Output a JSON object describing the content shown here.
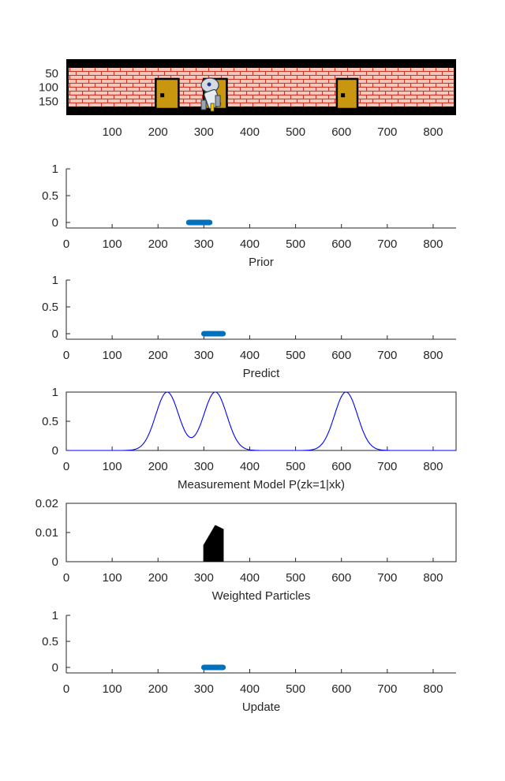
{
  "figure": {
    "xticks": [
      "0",
      "100",
      "200",
      "300",
      "400",
      "500",
      "600",
      "700",
      "800"
    ],
    "xlim": [
      0,
      850
    ],
    "colors": {
      "particles": "#0072bd",
      "measurement_line": "#0000ff",
      "weights_fill": "#000000",
      "axis": "#262626",
      "brick": "#f4c7bc",
      "mortar_line": "#c8321e",
      "door": "#c8960f",
      "wall_border": "#000000"
    }
  },
  "chart_data": [
    {
      "id": "scene",
      "type": "other",
      "description_visible": "corridor wall with three doors and a robot",
      "yticks": [
        "50",
        "100",
        "150"
      ],
      "xlim": [
        0,
        850
      ],
      "ylim": [
        0,
        200
      ],
      "doors_x_ranges": [
        [
          195,
          245
        ],
        [
          300,
          350
        ],
        [
          590,
          635
        ]
      ],
      "robot_x": 315,
      "icons": [
        "brick-wall-icon",
        "door-icon",
        "robot-icon"
      ]
    },
    {
      "id": "prior",
      "type": "scatter",
      "xlabel": "Prior",
      "yticks": [
        "0",
        "0.5",
        "1"
      ],
      "ylim": [
        0,
        1
      ],
      "x_range": [
        267,
        313
      ],
      "y": 0
    },
    {
      "id": "predict",
      "type": "scatter",
      "xlabel": "Predict",
      "yticks": [
        "0",
        "0.5",
        "1"
      ],
      "ylim": [
        0,
        1
      ],
      "x_range": [
        300,
        342
      ],
      "y": 0
    },
    {
      "id": "measurement",
      "type": "line",
      "xlabel": "Measurement Model P(zk=1|xk)",
      "yticks": [
        "0",
        "0.5",
        "1"
      ],
      "ylim": [
        0,
        1
      ],
      "gaussian_means": [
        220,
        325,
        610
      ],
      "gaussian_sigma": 25
    },
    {
      "id": "weights",
      "type": "bar",
      "xlabel": "Weighted Particles",
      "yticks": [
        "0",
        "0.01",
        "0.02"
      ],
      "ylim": [
        0,
        0.02
      ],
      "x_range": [
        300,
        342
      ],
      "peak_x": 325,
      "peak_value": 0.0125,
      "start_value": 0.0058,
      "end_value": 0.0112
    },
    {
      "id": "update",
      "type": "scatter",
      "xlabel": "Update",
      "yticks": [
        "0",
        "0.5",
        "1"
      ],
      "ylim": [
        0,
        1
      ],
      "x_range": [
        300,
        342
      ],
      "y": 0
    }
  ]
}
